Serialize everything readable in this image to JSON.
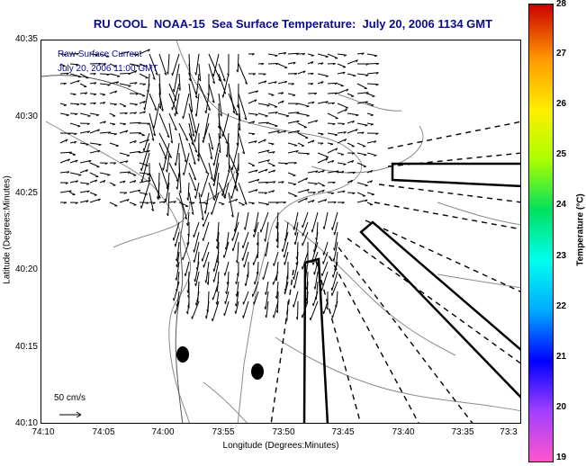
{
  "title": "RU COOL  NOAA-15  Sea Surface Temperature:  July 20, 2006 1134 GMT",
  "legend": {
    "line1": "Raw Surface Current",
    "line2": "July 20, 2006 11:00 GMT"
  },
  "axes": {
    "xlabel": "Longitude (Degrees:Minutes)",
    "ylabel": "Latitude (Degrees:Minutes)",
    "x_ticks": [
      "74:10",
      "74:05",
      "74:00",
      "73:55",
      "73:50",
      "73:45",
      "73:40",
      "73:35",
      "73:3"
    ],
    "y_ticks": [
      "40:35",
      "40:30",
      "40:25",
      "40:20",
      "40:15",
      "40:10"
    ]
  },
  "colorbar": {
    "label": "Temperature (°C)",
    "ticks": [
      "28",
      "27",
      "26",
      "25",
      "24",
      "23",
      "22",
      "21",
      "20",
      "19"
    ],
    "min": 19,
    "max": 28
  },
  "scale": {
    "label": "50 cm/s"
  }
}
